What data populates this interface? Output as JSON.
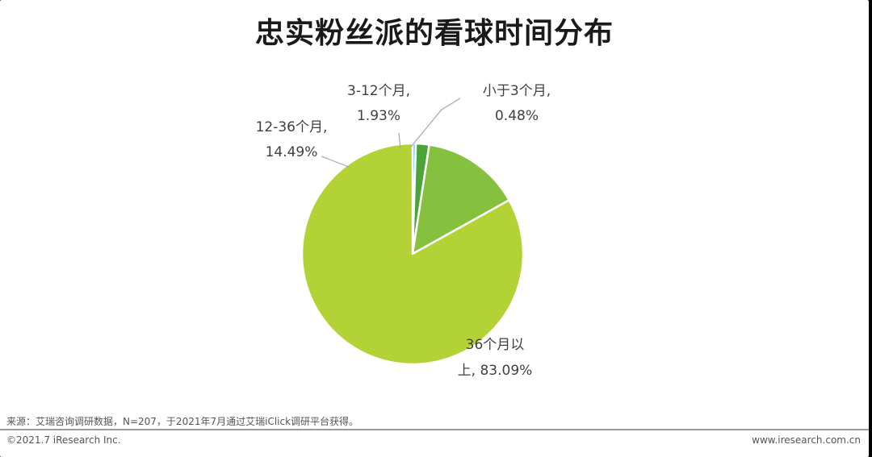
{
  "title": "忠实粉丝派的看球时间分布",
  "chart_data": {
    "type": "pie",
    "title": "忠实粉丝派的看球时间分布",
    "slices": [
      {
        "line1": "小于3个月,",
        "line2": "0.48%",
        "value": 0.48,
        "color": "#55c3f0"
      },
      {
        "line1": "3-12个月,",
        "line2": "1.93%",
        "value": 1.93,
        "color": "#4aa438"
      },
      {
        "line1": "12-36个月,",
        "line2": "14.49%",
        "value": 14.49,
        "color": "#86c03f"
      },
      {
        "line1": "36个月以",
        "line2": "上, 83.09%",
        "value": 83.09,
        "color": "#b2d235"
      }
    ]
  },
  "source": "来源：艾瑞咨询调研数据，N=207，于2021年7月通过艾瑞iClick调研平台获得。",
  "copyright": "©2021.7 iResearch Inc.",
  "website": "www.iresearch.com.cn"
}
